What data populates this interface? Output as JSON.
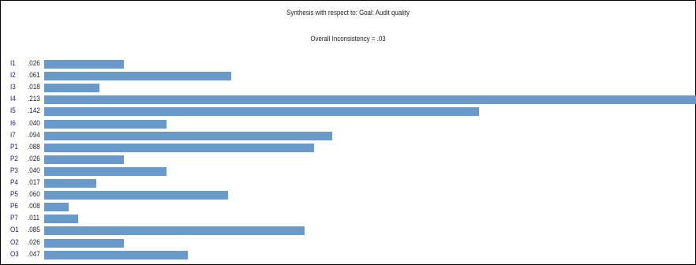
{
  "title": "Synthesis with respect to: Goal: Audit quality",
  "inconsistency": "Overall Inconsistency = .03",
  "colors": {
    "bar": "#6a9ac9",
    "label": "#1a1a7a"
  },
  "chart_data": {
    "type": "bar",
    "orientation": "horizontal",
    "categories": [
      "I1",
      "I2",
      "I3",
      "I4",
      "I5",
      "I6",
      "I7",
      "P1",
      "P2",
      "P3",
      "P4",
      "P5",
      "P6",
      "P7",
      "O1",
      "O2",
      "O3"
    ],
    "value_labels": [
      ".026",
      ".061",
      ".018",
      ".213",
      ".142",
      ".040",
      ".094",
      ".088",
      ".026",
      ".040",
      ".017",
      ".060",
      ".008",
      ".011",
      ".085",
      ".026",
      ".047"
    ],
    "values": [
      0.026,
      0.061,
      0.018,
      0.213,
      0.142,
      0.04,
      0.094,
      0.088,
      0.026,
      0.04,
      0.017,
      0.06,
      0.008,
      0.011,
      0.085,
      0.026,
      0.047
    ],
    "xlim": [
      0,
      0.213
    ]
  }
}
